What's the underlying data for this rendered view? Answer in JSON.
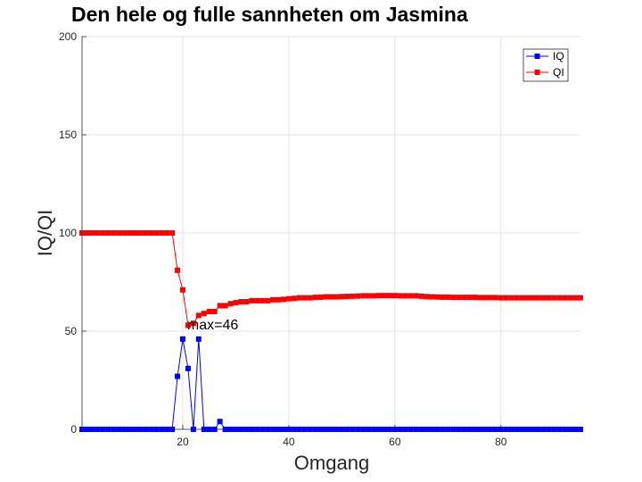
{
  "chart_data": {
    "type": "line",
    "title": "Den hele og fulle sannheten om Jasmina",
    "xlabel": "Omgang",
    "ylabel": "IQ/QI",
    "xlim": [
      1,
      95
    ],
    "ylim": [
      0,
      200
    ],
    "xticks": [
      20,
      40,
      60,
      80
    ],
    "yticks": [
      0,
      50,
      100,
      150,
      200
    ],
    "grid": true,
    "legend_position": "top-right",
    "annotation": {
      "text": "max=46",
      "x": 21,
      "y": 50
    },
    "series": [
      {
        "name": "IQ",
        "color": "#0000ff",
        "marker": "square",
        "x": [
          1,
          2,
          3,
          4,
          5,
          6,
          7,
          8,
          9,
          10,
          11,
          12,
          13,
          14,
          15,
          16,
          17,
          18,
          19,
          20,
          21,
          22,
          23,
          24,
          25,
          26,
          27,
          28,
          29,
          30,
          31,
          32,
          33,
          34,
          35,
          36,
          37,
          38,
          39,
          40,
          41,
          42,
          43,
          44,
          45,
          46,
          47,
          48,
          49,
          50,
          51,
          52,
          53,
          54,
          55,
          56,
          57,
          58,
          59,
          60,
          61,
          62,
          63,
          64,
          65,
          66,
          67,
          68,
          69,
          70,
          71,
          72,
          73,
          74,
          75,
          76,
          77,
          78,
          79,
          80,
          81,
          82,
          83,
          84,
          85,
          86,
          87,
          88,
          89,
          90,
          91,
          92,
          93,
          94,
          95
        ],
        "values": [
          0,
          0,
          0,
          0,
          0,
          0,
          0,
          0,
          0,
          0,
          0,
          0,
          0,
          0,
          0,
          0,
          0,
          0,
          27,
          46,
          31,
          0,
          46,
          0,
          0,
          0,
          4,
          0,
          0,
          0,
          0,
          0,
          0,
          0,
          0,
          0,
          0,
          0,
          0,
          0,
          0,
          0,
          0,
          0,
          0,
          0,
          0,
          0,
          0,
          0,
          0,
          0,
          0,
          0,
          0,
          0,
          0,
          0,
          0,
          0,
          0,
          0,
          0,
          0,
          0,
          0,
          0,
          0,
          0,
          0,
          0,
          0,
          0,
          0,
          0,
          0,
          0,
          0,
          0,
          0,
          0,
          0,
          0,
          0,
          0,
          0,
          0,
          0,
          0,
          0,
          0,
          0,
          0,
          0,
          0
        ]
      },
      {
        "name": "QI",
        "color": "#ff0000",
        "marker": "square",
        "x": [
          1,
          2,
          3,
          4,
          5,
          6,
          7,
          8,
          9,
          10,
          11,
          12,
          13,
          14,
          15,
          16,
          17,
          18,
          19,
          20,
          21,
          22,
          23,
          24,
          25,
          26,
          27,
          28,
          29,
          30,
          31,
          32,
          33,
          34,
          35,
          36,
          37,
          38,
          39,
          40,
          41,
          42,
          43,
          44,
          45,
          46,
          47,
          48,
          49,
          50,
          51,
          52,
          53,
          54,
          55,
          56,
          57,
          58,
          59,
          60,
          61,
          62,
          63,
          64,
          65,
          66,
          67,
          68,
          69,
          70,
          71,
          72,
          73,
          74,
          75,
          76,
          77,
          78,
          79,
          80,
          81,
          82,
          83,
          84,
          85,
          86,
          87,
          88,
          89,
          90,
          91,
          92,
          93,
          94,
          95
        ],
        "values": [
          100,
          100,
          100,
          100,
          100,
          100,
          100,
          100,
          100,
          100,
          100,
          100,
          100,
          100,
          100,
          100,
          100,
          100,
          81,
          71,
          53,
          54,
          58,
          59,
          60,
          60,
          63,
          63,
          64,
          64.5,
          65,
          65,
          65.5,
          65.5,
          65.5,
          65.5,
          66,
          66,
          66.2,
          66.5,
          66.7,
          67,
          67,
          67,
          67.2,
          67.3,
          67.5,
          67.5,
          67.5,
          67.6,
          67.7,
          67.8,
          67.9,
          68,
          68,
          68,
          68.1,
          68.1,
          68.1,
          68.1,
          68,
          68,
          68,
          68,
          67.8,
          67.6,
          67.5,
          67.4,
          67.3,
          67.3,
          67.2,
          67.2,
          67.2,
          67.2,
          67.2,
          67.1,
          67.1,
          67.1,
          67.1,
          67,
          67,
          67,
          67,
          67,
          67,
          67,
          67,
          67,
          67,
          67,
          67,
          67,
          67,
          67,
          67
        ]
      }
    ]
  }
}
